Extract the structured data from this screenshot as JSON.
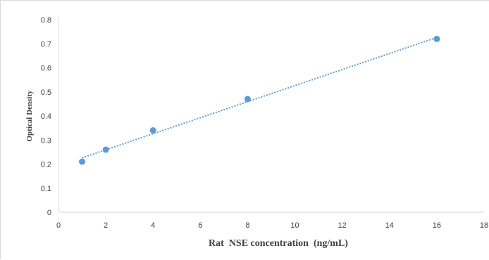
{
  "chart_data": {
    "type": "scatter",
    "title": "",
    "xlabel": "Rat  NSE concentration  (ng/mL)",
    "ylabel": "Optical Density",
    "xlim": [
      0,
      18
    ],
    "ylim": [
      0,
      0.8
    ],
    "xticks": [
      "0",
      "2",
      "4",
      "6",
      "8",
      "10",
      "12",
      "14",
      "16",
      "18"
    ],
    "yticks": [
      "0",
      "0.1",
      "0.2",
      "0.3",
      "0.4",
      "0.5",
      "0.6",
      "0.7",
      "0.8"
    ],
    "grid": false,
    "legend": false,
    "series": [
      {
        "x": [
          1,
          2,
          4,
          8,
          16
        ],
        "y": [
          0.21,
          0.26,
          0.34,
          0.47,
          0.72
        ],
        "color": "#5b9bd5",
        "trendline": {
          "style": "dotted",
          "x": [
            1,
            16
          ],
          "y": [
            0.226,
            0.726
          ]
        }
      }
    ]
  }
}
